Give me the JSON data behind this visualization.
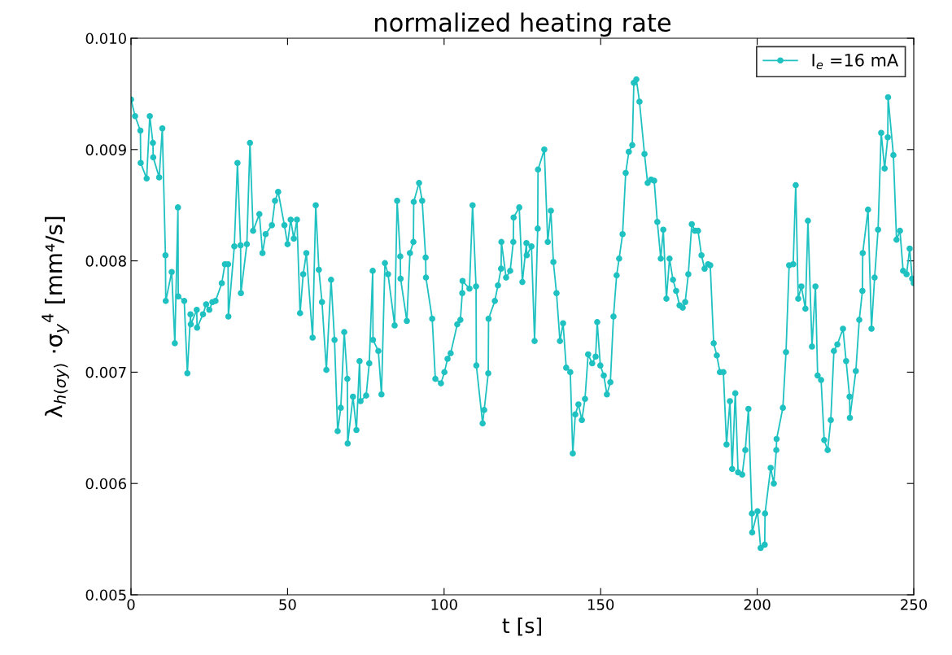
{
  "chart_data": {
    "type": "line",
    "title": "normalized heating rate",
    "xlabel": "t [s]",
    "ylabel": "λ$_{h(σy)}$ ·σ$_{y}$$^{4}$ [mm⁴/s]",
    "xlim": [
      0,
      250
    ],
    "xticks": [
      0,
      50,
      100,
      150,
      200,
      250
    ],
    "ylim": [
      0.005,
      0.01
    ],
    "yticks": [
      0.005,
      0.006,
      0.007,
      0.008,
      0.009,
      {
        "value": 0.01,
        "label": "0.010"
      }
    ],
    "grid": false,
    "legend": "top right",
    "marker": "circle",
    "line_style": "solid",
    "series": [
      {
        "name": "I$_{e}$ =16 mA",
        "color": "#1fc1c1",
        "x": [
          0,
          1.3,
          3,
          3.1,
          5,
          6,
          7,
          7.1,
          9,
          10,
          11,
          11.1,
          13,
          14,
          15,
          15.1,
          17,
          18,
          19,
          19.1,
          21,
          21.1,
          23,
          24,
          25,
          26,
          27,
          29,
          30,
          31,
          31.1,
          33,
          34,
          35,
          35.1,
          37,
          38,
          39,
          41,
          42,
          43,
          45,
          46,
          47,
          49,
          50,
          51,
          52,
          53,
          54,
          55,
          56,
          58,
          59,
          60,
          61,
          62.4,
          63.9,
          65.0,
          66.0,
          67.0,
          68.1,
          69.1,
          69.2,
          70.9,
          72.0,
          73.0,
          73.3,
          75.1,
          76.1,
          77.2,
          77.3,
          79.0,
          80.0,
          81.1,
          82.1,
          84.2,
          85.0,
          86.0,
          86.1,
          88.1,
          89.1,
          90.2,
          90.3,
          92.0,
          93.0,
          94.1,
          94.2,
          96.2,
          97.2,
          99.0,
          100.1,
          101.1,
          102.1,
          104.2,
          105.2,
          105.8,
          105.9,
          108.1,
          109.1,
          110.2,
          110.3,
          112.3,
          112.8,
          114.1,
          114.2,
          116.2,
          117.2,
          118.2,
          118.3,
          119.8,
          121.1,
          122.1,
          122.2,
          124.0,
          125.0,
          126.3,
          126.4,
          127.9,
          128.9,
          129.9,
          130.0,
          132.0,
          133.1,
          134.1,
          134.9,
          135.9,
          137.0,
          138.0,
          139.0,
          140.3,
          141.1,
          141.9,
          142.9,
          144.0,
          145.0,
          146.0,
          147.3,
          148.4,
          148.9,
          149.9,
          151.0,
          152.0,
          153.1,
          154.1,
          155.1,
          155.9,
          157.0,
          158.0,
          159.0,
          160.1,
          160.6,
          161.4,
          162.4,
          164.0,
          165.0,
          166.1,
          167.1,
          168.1,
          169.2,
          170.0,
          171.0,
          172.0,
          173.1,
          174.1,
          175.2,
          176.2,
          177.0,
          178.0,
          179.1,
          180.1,
          181.1,
          182.2,
          183.2,
          184.3,
          185.0,
          186.1,
          187.1,
          188.1,
          189.2,
          190.2,
          191.3,
          192.0,
          193.0,
          193.9,
          195.2,
          196.2,
          197.2,
          198.3,
          198.4,
          200.1,
          201.1,
          202.4,
          202.5,
          204.3,
          205.3,
          206.1,
          206.2,
          208.2,
          209.2,
          210.2,
          211.5,
          212.3,
          213.1,
          214.1,
          215.4,
          216.2,
          217.5,
          218.6,
          219.3,
          220.4,
          221.4,
          222.5,
          223.5,
          224.5,
          225.6,
          227.4,
          228.4,
          229.5,
          229.6,
          231.5,
          232.6,
          233.6,
          233.7,
          235.4,
          236.5,
          237.5,
          238.6,
          239.6,
          240.7,
          241.7,
          241.8,
          243.5,
          244.5,
          245.6,
          246.6,
          247.7,
          248.7,
          249.5,
          250.0
        ],
        "values": [
          0.00945,
          0.0093,
          0.00917,
          0.00888,
          0.00874,
          0.0093,
          0.00906,
          0.00893,
          0.00875,
          0.00919,
          0.00805,
          0.00764,
          0.0079,
          0.00726,
          0.00848,
          0.00768,
          0.00764,
          0.00699,
          0.00752,
          0.00743,
          0.00756,
          0.0074,
          0.00752,
          0.00761,
          0.00756,
          0.00763,
          0.00764,
          0.0078,
          0.00797,
          0.00797,
          0.0075,
          0.00813,
          0.00888,
          0.00814,
          0.00771,
          0.00815,
          0.00906,
          0.00827,
          0.00842,
          0.00807,
          0.00824,
          0.00832,
          0.00854,
          0.00862,
          0.00832,
          0.00815,
          0.00837,
          0.0082,
          0.00837,
          0.00753,
          0.00788,
          0.00807,
          0.00731,
          0.0085,
          0.00792,
          0.00763,
          0.00702,
          0.00783,
          0.00729,
          0.00647,
          0.00668,
          0.00736,
          0.00694,
          0.00636,
          0.00678,
          0.00648,
          0.0071,
          0.00674,
          0.00679,
          0.00708,
          0.00791,
          0.00729,
          0.00719,
          0.0068,
          0.00798,
          0.00788,
          0.00742,
          0.00854,
          0.00804,
          0.00784,
          0.00746,
          0.00807,
          0.00817,
          0.00853,
          0.0087,
          0.00854,
          0.00803,
          0.00785,
          0.00748,
          0.00694,
          0.0069,
          0.007,
          0.00712,
          0.00717,
          0.00743,
          0.00747,
          0.00771,
          0.00782,
          0.00775,
          0.0085,
          0.00777,
          0.00706,
          0.00654,
          0.00666,
          0.00699,
          0.00748,
          0.00764,
          0.00778,
          0.00793,
          0.00817,
          0.00785,
          0.00791,
          0.00817,
          0.00839,
          0.00848,
          0.00781,
          0.00816,
          0.00805,
          0.00813,
          0.00728,
          0.00829,
          0.00882,
          0.009,
          0.00817,
          0.00845,
          0.00799,
          0.00771,
          0.00728,
          0.00744,
          0.00704,
          0.007,
          0.00627,
          0.00662,
          0.00671,
          0.00657,
          0.00676,
          0.00716,
          0.00708,
          0.00714,
          0.00745,
          0.00706,
          0.00697,
          0.0068,
          0.00691,
          0.0075,
          0.00787,
          0.00802,
          0.00824,
          0.00879,
          0.00898,
          0.00904,
          0.0096,
          0.00963,
          0.00943,
          0.00896,
          0.0087,
          0.00873,
          0.00872,
          0.00835,
          0.00802,
          0.00828,
          0.00766,
          0.00802,
          0.00783,
          0.00773,
          0.0076,
          0.00758,
          0.00763,
          0.00788,
          0.00833,
          0.00827,
          0.00827,
          0.00805,
          0.00793,
          0.00797,
          0.00796,
          0.00726,
          0.00715,
          0.007,
          0.007,
          0.00635,
          0.00674,
          0.00613,
          0.00681,
          0.0061,
          0.00608,
          0.0063,
          0.00667,
          0.00573,
          0.00556,
          0.00575,
          0.00542,
          0.00545,
          0.00573,
          0.00614,
          0.006,
          0.0063,
          0.0064,
          0.00668,
          0.00718,
          0.00796,
          0.00797,
          0.00868,
          0.00766,
          0.00777,
          0.00757,
          0.00836,
          0.00723,
          0.00777,
          0.00697,
          0.00693,
          0.00639,
          0.0063,
          0.00657,
          0.00719,
          0.00725,
          0.00739,
          0.0071,
          0.00678,
          0.00659,
          0.00701,
          0.00747,
          0.00773,
          0.00807,
          0.00846,
          0.00739,
          0.00785,
          0.00828,
          0.00915,
          0.00883,
          0.00911,
          0.00947,
          0.00895,
          0.00819,
          0.00827,
          0.00791,
          0.00788,
          0.00811,
          0.00784,
          0.0078
        ]
      }
    ]
  }
}
